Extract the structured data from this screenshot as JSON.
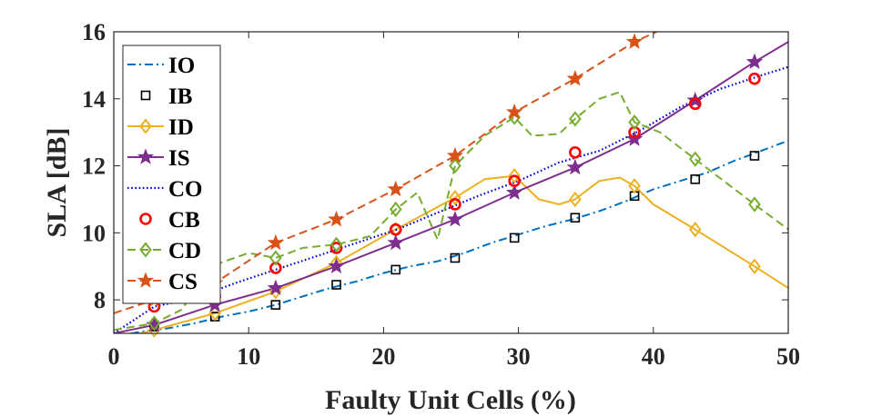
{
  "chart_data": {
    "type": "line",
    "title": "",
    "xlabel": "Faulty Unit Cells (%)",
    "ylabel": "SLA [dB]",
    "xlim": [
      0,
      50
    ],
    "ylim": [
      7,
      16
    ],
    "xticks": [
      0,
      10,
      20,
      30,
      40,
      50
    ],
    "yticks": [
      8,
      10,
      12,
      14,
      16
    ],
    "xtick_labels": [
      "0",
      "10",
      "20",
      "30",
      "40",
      "50"
    ],
    "ytick_labels": [
      "8",
      "10",
      "12",
      "14",
      "16"
    ],
    "grid": false,
    "legend_position": "top-left",
    "series": [
      {
        "name": "IO",
        "color": "#0072BD",
        "line": "dashdot",
        "marker": "none",
        "x": [
          0,
          2,
          4,
          6,
          8,
          10,
          12,
          14,
          16,
          18,
          20,
          22,
          24,
          26,
          28,
          30,
          32,
          34,
          36,
          38,
          40,
          42,
          44,
          46,
          48,
          50
        ],
        "y": [
          6.9,
          7.05,
          7.15,
          7.3,
          7.5,
          7.65,
          7.85,
          8.1,
          8.35,
          8.55,
          8.8,
          9.0,
          9.15,
          9.4,
          9.7,
          9.95,
          10.2,
          10.4,
          10.65,
          10.95,
          11.3,
          11.55,
          11.8,
          12.15,
          12.45,
          12.75
        ]
      },
      {
        "name": "IB",
        "color": "#000000",
        "line": "none",
        "marker": "square",
        "x": [
          3.0,
          7.5,
          12.0,
          16.5,
          20.9,
          25.3,
          29.7,
          34.2,
          38.6,
          43.1,
          47.5
        ],
        "y": [
          7.2,
          7.5,
          7.85,
          8.45,
          8.9,
          9.25,
          9.85,
          10.45,
          11.1,
          11.6,
          12.3
        ]
      },
      {
        "name": "ID",
        "color": "#EDB120",
        "line": "solid",
        "marker": "diamond",
        "x": [
          0,
          3.0,
          7.5,
          12.0,
          16.5,
          20.9,
          25.3,
          27.5,
          29.7,
          31.5,
          33.0,
          34.2,
          36.0,
          37.5,
          38.6,
          40.0,
          43.1,
          47.5,
          50
        ],
        "y": [
          6.8,
          7.1,
          7.6,
          8.25,
          9.1,
          10.1,
          11.05,
          11.6,
          11.7,
          11.0,
          10.85,
          11.0,
          11.55,
          11.65,
          11.4,
          10.85,
          10.1,
          9.0,
          8.35
        ],
        "marker_x": [
          3.0,
          7.5,
          12.0,
          16.5,
          20.9,
          25.3,
          29.7,
          34.2,
          38.6,
          43.1,
          47.5
        ],
        "marker_y": [
          7.1,
          7.6,
          8.25,
          9.1,
          10.1,
          11.05,
          11.7,
          11.0,
          11.4,
          10.1,
          9.0
        ]
      },
      {
        "name": "IS",
        "color": "#7E2F8E",
        "line": "solid",
        "marker": "star",
        "x": [
          0,
          3.0,
          7.5,
          12.0,
          16.5,
          20.9,
          25.3,
          29.7,
          34.2,
          38.6,
          43.1,
          47.5,
          50
        ],
        "y": [
          7.0,
          7.25,
          7.85,
          8.35,
          9.0,
          9.7,
          10.4,
          11.2,
          11.95,
          12.8,
          13.95,
          15.1,
          15.7
        ],
        "marker_x": [
          3.0,
          7.5,
          12.0,
          16.5,
          20.9,
          25.3,
          29.7,
          34.2,
          38.6,
          43.1,
          47.5
        ],
        "marker_y": [
          7.25,
          7.85,
          8.35,
          9.0,
          9.7,
          10.4,
          11.2,
          11.95,
          12.8,
          13.95,
          15.1
        ]
      },
      {
        "name": "CO",
        "color": "#0000CD",
        "line": "dotted",
        "marker": "none",
        "x": [
          0,
          3,
          6,
          9,
          12,
          15,
          18,
          21,
          24,
          27,
          30,
          33,
          36,
          39,
          42,
          45,
          48,
          50
        ],
        "y": [
          7.0,
          7.8,
          8.05,
          8.5,
          8.9,
          9.3,
          9.7,
          10.1,
          10.6,
          11.1,
          11.55,
          12.1,
          12.45,
          13.05,
          13.75,
          14.3,
          14.7,
          14.95
        ]
      },
      {
        "name": "CB",
        "color": "#FF0000",
        "line": "none",
        "marker": "circle",
        "x": [
          3.0,
          7.5,
          12.0,
          16.5,
          20.9,
          25.3,
          29.7,
          34.2,
          38.6,
          43.1,
          47.5
        ],
        "y": [
          7.8,
          8.1,
          8.95,
          9.55,
          10.1,
          10.85,
          11.55,
          12.4,
          13.0,
          13.85,
          14.6
        ]
      },
      {
        "name": "CD",
        "color": "#77AC30",
        "line": "dashed",
        "marker": "diamond",
        "x": [
          0,
          3.0,
          5.0,
          7.5,
          10.0,
          12.0,
          14.0,
          16.5,
          19.0,
          20.9,
          22.5,
          24.0,
          25.3,
          27.5,
          29.7,
          31.0,
          33.0,
          34.2,
          36.0,
          37.5,
          38.6,
          40.5,
          43.1,
          47.5,
          50
        ],
        "y": [
          7.1,
          7.3,
          7.7,
          9.05,
          9.4,
          9.25,
          9.55,
          9.65,
          9.9,
          10.7,
          11.2,
          9.8,
          12.0,
          12.9,
          13.45,
          12.9,
          12.95,
          13.4,
          14.0,
          14.2,
          13.3,
          13.0,
          12.2,
          10.85,
          10.1
        ],
        "marker_x": [
          3.0,
          7.5,
          12.0,
          16.5,
          20.9,
          25.3,
          29.7,
          34.2,
          38.6,
          43.1,
          47.5
        ],
        "marker_y": [
          7.3,
          9.05,
          9.25,
          9.65,
          10.7,
          12.0,
          13.45,
          13.4,
          13.3,
          12.2,
          10.85
        ]
      },
      {
        "name": "CS",
        "color": "#D95319",
        "line": "dashed",
        "marker": "star",
        "x": [
          0,
          3.0,
          7.5,
          12.0,
          16.5,
          20.9,
          25.3,
          29.7,
          34.2,
          38.6,
          40.5
        ],
        "y": [
          7.6,
          8.0,
          8.5,
          9.7,
          10.4,
          11.3,
          12.3,
          13.6,
          14.6,
          15.7,
          16.05
        ],
        "marker_x": [
          3.0,
          7.5,
          12.0,
          16.5,
          20.9,
          25.3,
          29.7,
          34.2,
          38.6
        ],
        "marker_y": [
          8.0,
          8.5,
          9.7,
          10.4,
          11.3,
          12.3,
          13.6,
          14.6,
          15.7
        ]
      }
    ]
  }
}
